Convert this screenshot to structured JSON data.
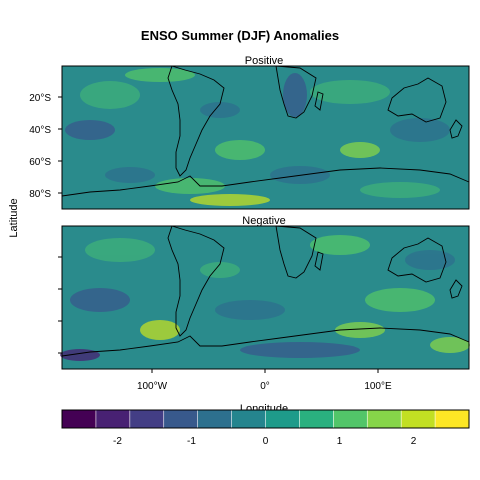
{
  "title": "ENSO Summer (DJF) Anomalies",
  "panels": [
    {
      "title": "Positive"
    },
    {
      "title": "Negative"
    }
  ],
  "axes": {
    "ylabel": "Latitude",
    "xlabel": "Longitude",
    "yticks": [
      "20°S",
      "40°S",
      "60°S",
      "80°S"
    ],
    "xticks": [
      "100°W",
      "0°",
      "100°E"
    ]
  },
  "colorbar": {
    "ticks": [
      "-2",
      "-1",
      "0",
      "1",
      "2"
    ],
    "range": [
      -2.75,
      2.75
    ],
    "colors": [
      "#440154",
      "#482173",
      "#433e85",
      "#38598c",
      "#2d708e",
      "#25858e",
      "#1e9b8a",
      "#2ab07f",
      "#52c569",
      "#86d549",
      "#c2df23",
      "#fde725"
    ]
  }
}
